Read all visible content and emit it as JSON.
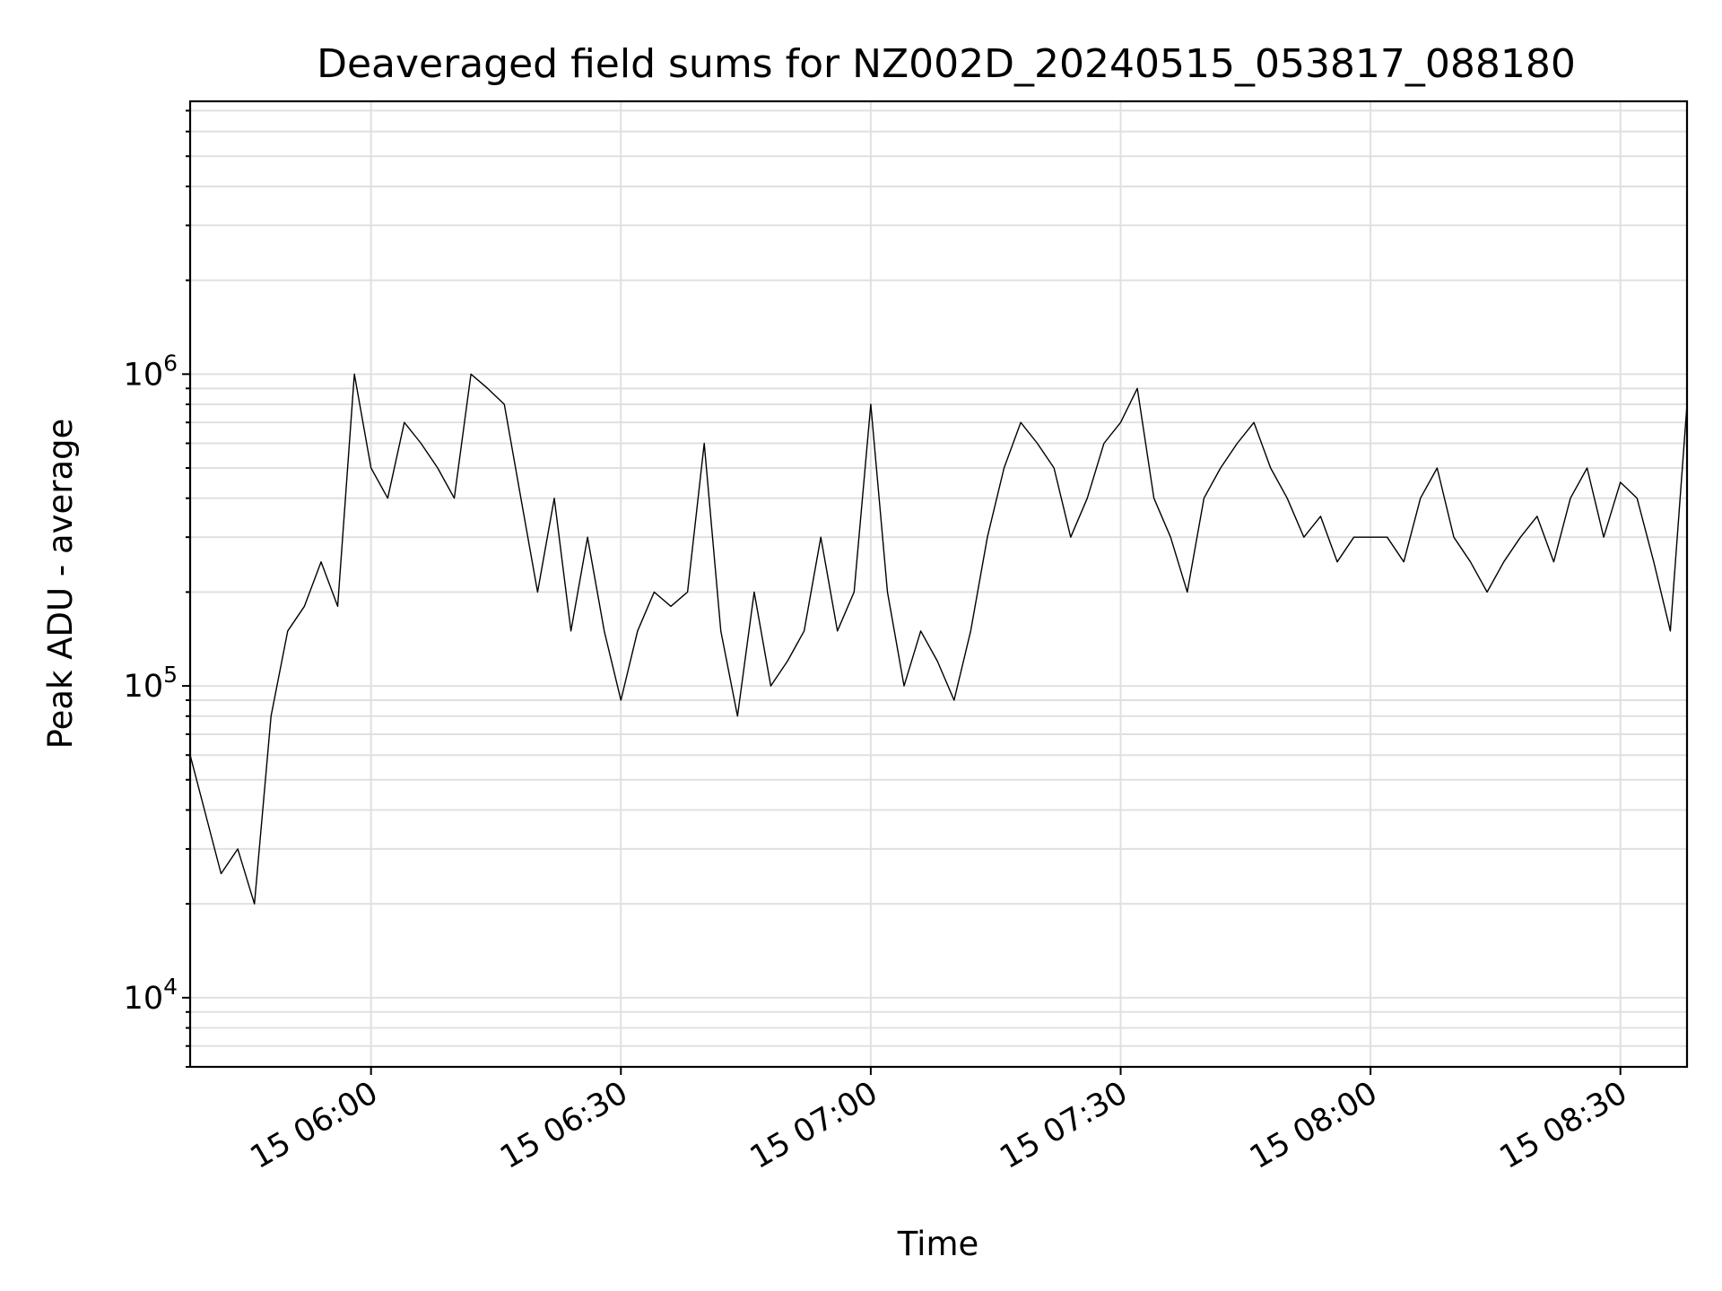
{
  "chart_data": {
    "type": "line",
    "title": "Deaveraged field sums for NZ002D_20240515_053817_088180",
    "xlabel": "Time",
    "ylabel": "Peak ADU - average",
    "yscale": "log",
    "xlim": [
      "2024-05-15 05:38:17",
      "2024-05-15 08:38:00"
    ],
    "ylim": [
      6000,
      7500000
    ],
    "grid": true,
    "x_ticks": [
      "2024-05-15 06:00",
      "2024-05-15 06:30",
      "2024-05-15 07:00",
      "2024-05-15 07:30",
      "2024-05-15 08:00",
      "2024-05-15 08:30"
    ],
    "x_tick_labels": [
      "15 06:00",
      "15 06:30",
      "15 07:00",
      "15 07:30",
      "15 08:00",
      "15 08:30"
    ],
    "y_ticks": [
      10000,
      100000,
      1000000
    ],
    "y_tick_labels": [
      {
        "base": "10",
        "exp": "4"
      },
      {
        "base": "10",
        "exp": "5"
      },
      {
        "base": "10",
        "exp": "6"
      }
    ],
    "line_color": "#000000",
    "series": [
      {
        "x": [
          "2024-05-15 05:38:17",
          "2024-05-15 05:42:00",
          "2024-05-15 05:44:00",
          "2024-05-15 05:46:00",
          "2024-05-15 05:48:00",
          "2024-05-15 05:50:00",
          "2024-05-15 05:52:00",
          "2024-05-15 05:54:00",
          "2024-05-15 05:56:00",
          "2024-05-15 05:58:00",
          "2024-05-15 06:00:00",
          "2024-05-15 06:02:00",
          "2024-05-15 06:04:00",
          "2024-05-15 06:06:00",
          "2024-05-15 06:08:00",
          "2024-05-15 06:10:00",
          "2024-05-15 06:12:00",
          "2024-05-15 06:14:00",
          "2024-05-15 06:16:00",
          "2024-05-15 06:18:00",
          "2024-05-15 06:20:00",
          "2024-05-15 06:22:00",
          "2024-05-15 06:24:00",
          "2024-05-15 06:26:00",
          "2024-05-15 06:28:00",
          "2024-05-15 06:30:00",
          "2024-05-15 06:32:00",
          "2024-05-15 06:34:00",
          "2024-05-15 06:36:00",
          "2024-05-15 06:38:00",
          "2024-05-15 06:40:00",
          "2024-05-15 06:42:00",
          "2024-05-15 06:44:00",
          "2024-05-15 06:46:00",
          "2024-05-15 06:48:00",
          "2024-05-15 06:50:00",
          "2024-05-15 06:52:00",
          "2024-05-15 06:54:00",
          "2024-05-15 06:56:00",
          "2024-05-15 06:58:00",
          "2024-05-15 07:00:00",
          "2024-05-15 07:02:00",
          "2024-05-15 07:04:00",
          "2024-05-15 07:06:00",
          "2024-05-15 07:08:00",
          "2024-05-15 07:10:00",
          "2024-05-15 07:12:00",
          "2024-05-15 07:14:00",
          "2024-05-15 07:16:00",
          "2024-05-15 07:18:00",
          "2024-05-15 07:20:00",
          "2024-05-15 07:22:00",
          "2024-05-15 07:24:00",
          "2024-05-15 07:26:00",
          "2024-05-15 07:28:00",
          "2024-05-15 07:30:00",
          "2024-05-15 07:32:00",
          "2024-05-15 07:34:00",
          "2024-05-15 07:36:00",
          "2024-05-15 07:38:00",
          "2024-05-15 07:40:00",
          "2024-05-15 07:42:00",
          "2024-05-15 07:44:00",
          "2024-05-15 07:46:00",
          "2024-05-15 07:48:00",
          "2024-05-15 07:50:00",
          "2024-05-15 07:52:00",
          "2024-05-15 07:54:00",
          "2024-05-15 07:56:00",
          "2024-05-15 07:58:00",
          "2024-05-15 08:00:00",
          "2024-05-15 08:02:00",
          "2024-05-15 08:04:00",
          "2024-05-15 08:06:00",
          "2024-05-15 08:08:00",
          "2024-05-15 08:10:00",
          "2024-05-15 08:12:00",
          "2024-05-15 08:14:00",
          "2024-05-15 08:16:00",
          "2024-05-15 08:18:00",
          "2024-05-15 08:20:00",
          "2024-05-15 08:22:00",
          "2024-05-15 08:24:00",
          "2024-05-15 08:26:00",
          "2024-05-15 08:28:00",
          "2024-05-15 08:30:00",
          "2024-05-15 08:32:00",
          "2024-05-15 08:34:00",
          "2024-05-15 08:36:00",
          "2024-05-15 08:38:00"
        ],
        "values": [
          60000,
          25000,
          30000,
          20000,
          80000,
          150000,
          180000,
          250000,
          180000,
          1000000,
          500000,
          400000,
          700000,
          600000,
          500000,
          400000,
          1000000,
          900000,
          800000,
          400000,
          200000,
          400000,
          150000,
          300000,
          150000,
          90000,
          150000,
          200000,
          180000,
          200000,
          600000,
          150000,
          80000,
          200000,
          100000,
          120000,
          150000,
          300000,
          150000,
          200000,
          800000,
          200000,
          100000,
          150000,
          120000,
          90000,
          150000,
          300000,
          500000,
          700000,
          600000,
          500000,
          300000,
          400000,
          600000,
          700000,
          900000,
          400000,
          300000,
          200000,
          400000,
          500000,
          600000,
          700000,
          500000,
          400000,
          300000,
          350000,
          250000,
          300000,
          300000,
          300000,
          250000,
          400000,
          500000,
          300000,
          250000,
          200000,
          250000,
          300000,
          350000,
          250000,
          400000,
          500000,
          300000,
          450000,
          400000,
          250000,
          150000,
          800000
        ]
      }
    ]
  }
}
